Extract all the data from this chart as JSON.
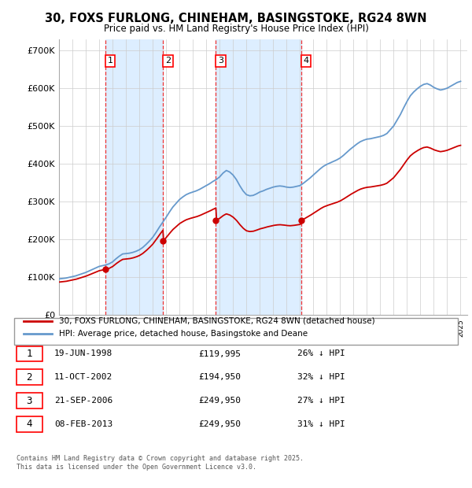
{
  "title_line1": "30, FOXS FURLONG, CHINEHAM, BASINGSTOKE, RG24 8WN",
  "title_line2": "Price paid vs. HM Land Registry's House Price Index (HPI)",
  "yticks": [
    0,
    100000,
    200000,
    300000,
    400000,
    500000,
    600000,
    700000
  ],
  "ytick_labels": [
    "£0",
    "£100K",
    "£200K",
    "£300K",
    "£400K",
    "£500K",
    "£600K",
    "£700K"
  ],
  "sale_year_vals": [
    1998.47,
    2002.78,
    2006.72,
    2013.1
  ],
  "sale_price_vals": [
    119995,
    194950,
    249950,
    249950
  ],
  "sale_labels": [
    "1",
    "2",
    "3",
    "4"
  ],
  "transaction_table": [
    {
      "num": "1",
      "date": "19-JUN-1998",
      "price": "£119,995",
      "pct": "26% ↓ HPI"
    },
    {
      "num": "2",
      "date": "11-OCT-2002",
      "price": "£194,950",
      "pct": "32% ↓ HPI"
    },
    {
      "num": "3",
      "date": "21-SEP-2006",
      "price": "£249,950",
      "pct": "27% ↓ HPI"
    },
    {
      "num": "4",
      "date": "08-FEB-2013",
      "price": "£249,950",
      "pct": "31% ↓ HPI"
    }
  ],
  "hpi_color": "#6699cc",
  "price_color": "#cc0000",
  "shade_color": "#ddeeff",
  "vline_color": "#ee3333",
  "footnote_line1": "Contains HM Land Registry data © Crown copyright and database right 2025.",
  "footnote_line2": "This data is licensed under the Open Government Licence v3.0.",
  "legend_label_price": "30, FOXS FURLONG, CHINEHAM, BASINGSTOKE, RG24 8WN (detached house)",
  "legend_label_hpi": "HPI: Average price, detached house, Basingstoke and Deane",
  "years_hpi": [
    1995.0,
    1995.25,
    1995.5,
    1995.75,
    1996.0,
    1996.25,
    1996.5,
    1996.75,
    1997.0,
    1997.25,
    1997.5,
    1997.75,
    1998.0,
    1998.25,
    1998.5,
    1998.75,
    1999.0,
    1999.25,
    1999.5,
    1999.75,
    2000.0,
    2000.25,
    2000.5,
    2000.75,
    2001.0,
    2001.25,
    2001.5,
    2001.75,
    2002.0,
    2002.25,
    2002.5,
    2002.75,
    2003.0,
    2003.25,
    2003.5,
    2003.75,
    2004.0,
    2004.25,
    2004.5,
    2004.75,
    2005.0,
    2005.25,
    2005.5,
    2005.75,
    2006.0,
    2006.25,
    2006.5,
    2006.75,
    2007.0,
    2007.25,
    2007.5,
    2007.75,
    2008.0,
    2008.25,
    2008.5,
    2008.75,
    2009.0,
    2009.25,
    2009.5,
    2009.75,
    2010.0,
    2010.25,
    2010.5,
    2010.75,
    2011.0,
    2011.25,
    2011.5,
    2011.75,
    2012.0,
    2012.25,
    2012.5,
    2012.75,
    2013.0,
    2013.25,
    2013.5,
    2013.75,
    2014.0,
    2014.25,
    2014.5,
    2014.75,
    2015.0,
    2015.25,
    2015.5,
    2015.75,
    2016.0,
    2016.25,
    2016.5,
    2016.75,
    2017.0,
    2017.25,
    2017.5,
    2017.75,
    2018.0,
    2018.25,
    2018.5,
    2018.75,
    2019.0,
    2019.25,
    2019.5,
    2019.75,
    2020.0,
    2020.25,
    2020.5,
    2020.75,
    2021.0,
    2021.25,
    2021.5,
    2021.75,
    2022.0,
    2022.25,
    2022.5,
    2022.75,
    2023.0,
    2023.25,
    2023.5,
    2023.75,
    2024.0,
    2024.25,
    2024.5,
    2024.75,
    2025.0
  ],
  "hpi_values": [
    95000,
    96000,
    97000,
    99000,
    101000,
    103000,
    106000,
    109000,
    112000,
    116000,
    120000,
    124000,
    128000,
    130000,
    132000,
    135000,
    140000,
    148000,
    155000,
    161000,
    162000,
    163000,
    165000,
    168000,
    172000,
    178000,
    186000,
    195000,
    205000,
    218000,
    232000,
    245000,
    258000,
    272000,
    285000,
    295000,
    305000,
    312000,
    318000,
    322000,
    325000,
    328000,
    332000,
    337000,
    342000,
    347000,
    353000,
    358000,
    365000,
    375000,
    382000,
    378000,
    370000,
    358000,
    342000,
    328000,
    318000,
    315000,
    316000,
    320000,
    325000,
    328000,
    332000,
    335000,
    338000,
    340000,
    341000,
    340000,
    338000,
    337000,
    338000,
    340000,
    342000,
    348000,
    355000,
    362000,
    370000,
    378000,
    386000,
    393000,
    398000,
    402000,
    406000,
    410000,
    415000,
    422000,
    430000,
    438000,
    445000,
    452000,
    458000,
    462000,
    465000,
    466000,
    468000,
    470000,
    472000,
    475000,
    480000,
    490000,
    500000,
    515000,
    530000,
    548000,
    565000,
    580000,
    590000,
    598000,
    605000,
    610000,
    612000,
    608000,
    602000,
    598000,
    595000,
    597000,
    600000,
    605000,
    610000,
    615000,
    618000
  ]
}
